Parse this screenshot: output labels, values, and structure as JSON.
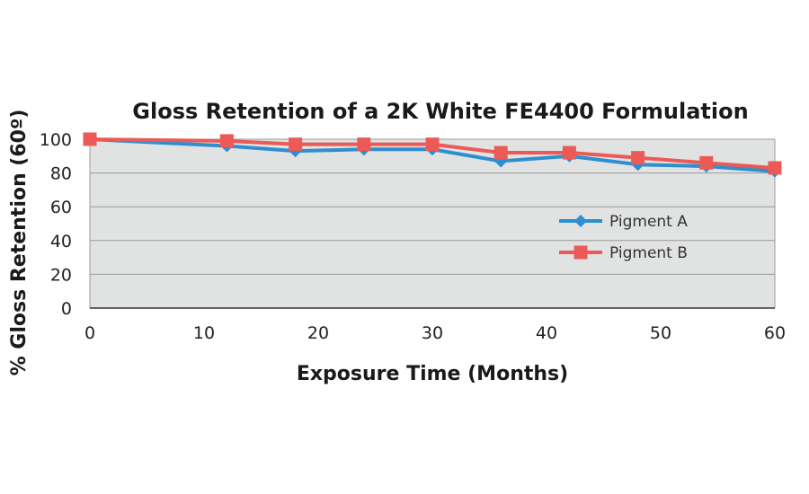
{
  "chart_data": {
    "type": "line",
    "title": "Gloss Retention of a 2K White FE4400 Formulation",
    "xlabel": "Exposure Time (Months)",
    "ylabel": "% Gloss Retention (60º)",
    "xlim": [
      0,
      60
    ],
    "ylim": [
      0,
      100
    ],
    "x_ticks": [
      "0",
      "10",
      "20",
      "30",
      "40",
      "50",
      "60"
    ],
    "y_ticks": [
      "0",
      "20",
      "40",
      "60",
      "80",
      "100"
    ],
    "grid": true,
    "legend_position": "right",
    "series": [
      {
        "name": "Pigment A",
        "color": "#2e8fd0",
        "marker": "diamond",
        "x": [
          0,
          12,
          18,
          24,
          30,
          36,
          42,
          48,
          54,
          60
        ],
        "values": [
          100,
          96,
          93,
          94,
          94,
          87,
          90,
          85,
          84,
          81
        ]
      },
      {
        "name": "Pigment B",
        "color": "#ec5a57",
        "marker": "square",
        "x": [
          0,
          12,
          18,
          24,
          30,
          36,
          42,
          48,
          54,
          60
        ],
        "values": [
          100,
          99,
          97,
          97,
          97,
          92,
          92,
          89,
          86,
          83
        ]
      }
    ]
  }
}
